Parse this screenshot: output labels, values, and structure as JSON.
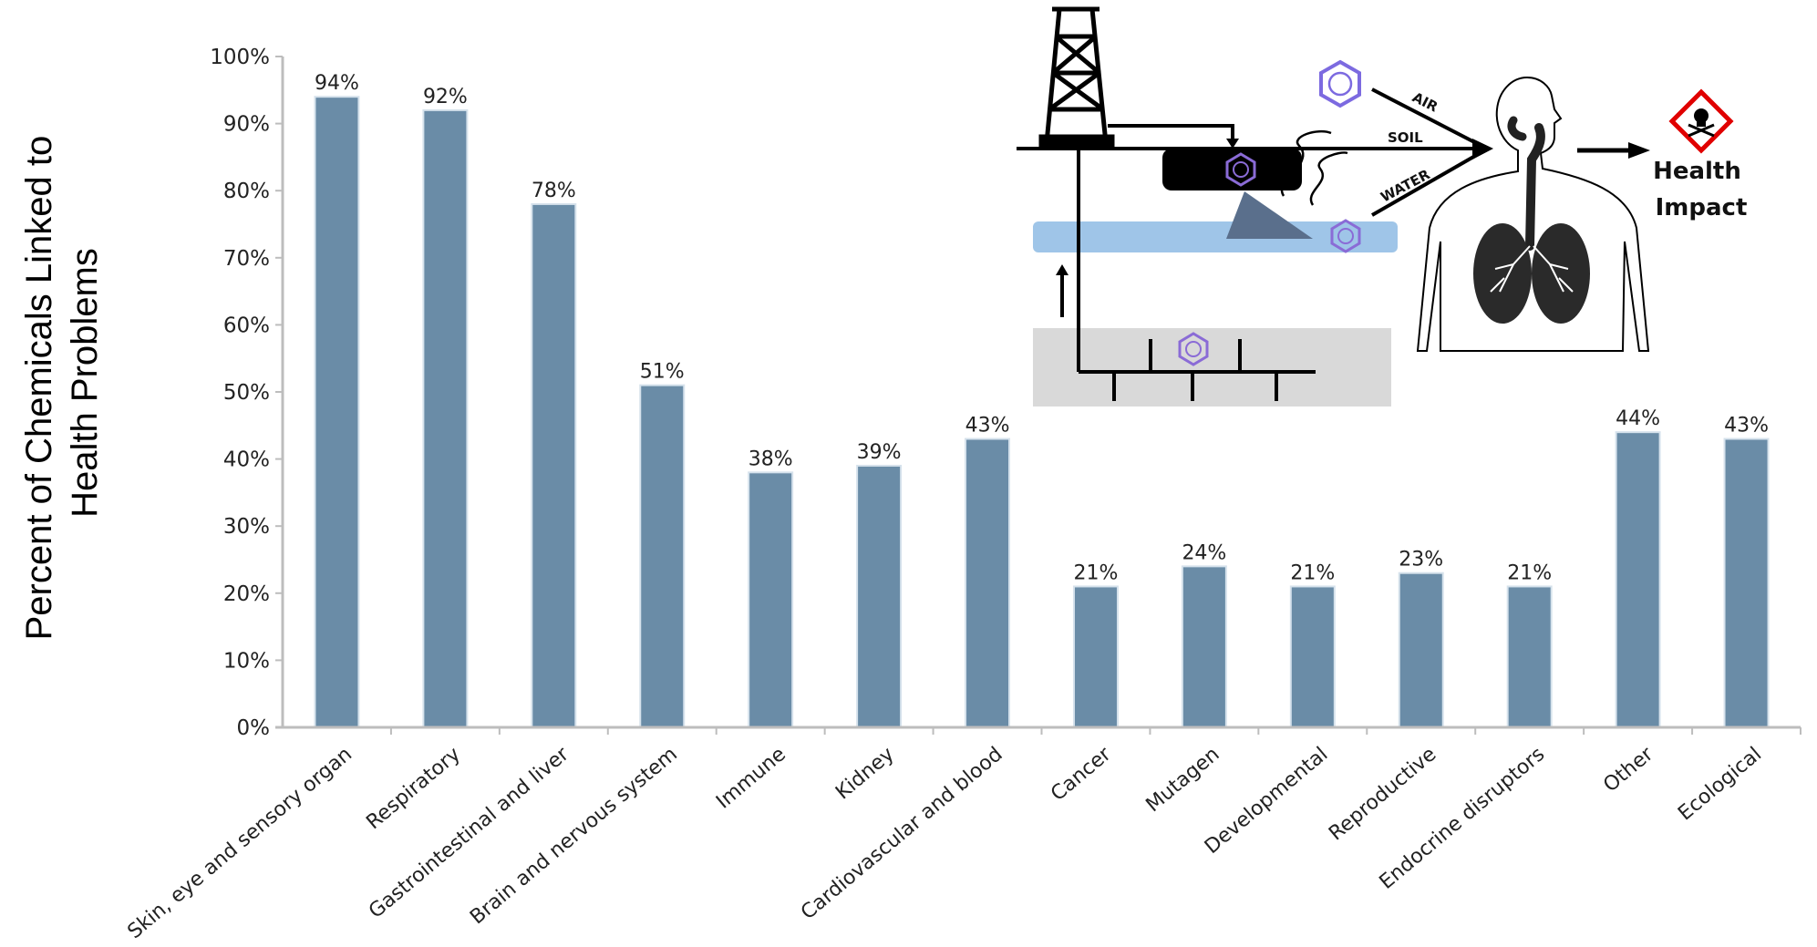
{
  "chart_data": {
    "type": "bar",
    "categories": [
      "Skin, eye and sensory organ",
      "Respiratory",
      "Gastrointestinal and liver",
      "Brain and nervous system",
      "Immune",
      "Kidney",
      "Cardiovascular and blood",
      "Cancer",
      "Mutagen",
      "Developmental",
      "Reproductive",
      "Endocrine disruptors",
      "Other",
      "Ecological"
    ],
    "values": [
      94,
      92,
      78,
      51,
      38,
      39,
      43,
      21,
      24,
      21,
      23,
      21,
      44,
      43
    ],
    "data_labels": [
      "94%",
      "92%",
      "78%",
      "51%",
      "38%",
      "39%",
      "43%",
      "21%",
      "24%",
      "21%",
      "23%",
      "21%",
      "44%",
      "43%"
    ],
    "ylabel_lines": [
      "Percent of Chemicals Linked to",
      "Health Problems"
    ],
    "ylim": [
      0,
      100
    ],
    "yticks": [
      0,
      10,
      20,
      30,
      40,
      50,
      60,
      70,
      80,
      90,
      100
    ],
    "ytick_labels": [
      "0%",
      "10%",
      "20%",
      "30%",
      "40%",
      "50%",
      "60%",
      "70%",
      "80%",
      "90%",
      "100%"
    ],
    "bar_color": "#6a8ca7",
    "grid": false,
    "legend": "none"
  },
  "inset": {
    "labels": {
      "air": "AIR",
      "soil": "SOIL",
      "water": "WATER"
    },
    "impact_lines": [
      "Health",
      "Impact"
    ],
    "icons": [
      "oil-derrick-icon",
      "benzene-ring-icon",
      "human-respiratory-icon",
      "toxic-hazard-icon"
    ],
    "colors": {
      "groundwater": "#9fc5e8",
      "subsurface": "#d9d9d9",
      "hazard": "#e00000"
    }
  }
}
